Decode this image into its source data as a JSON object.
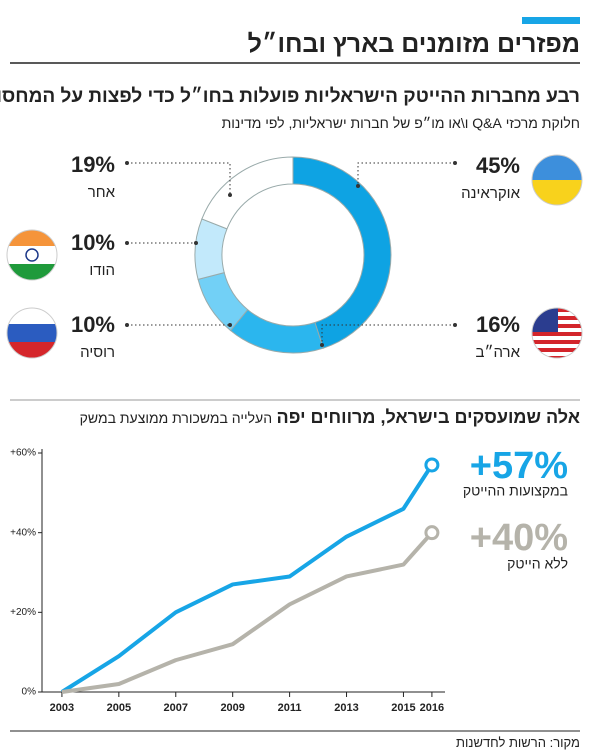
{
  "header": {
    "title": "מפזרים מזומנים בארץ ובחו״ל"
  },
  "chart_data": [
    {
      "type": "donut",
      "title": "רבע מחברות ההייטק הישראליות פועלות בחו״ל כדי לפצות על המחסור בעובדים",
      "subtitle": "חלוקת מרכזי Q&A ו\\או מו״פ של חברות ישראליות, לפי מדינות",
      "categories": [
        "אוקראינה",
        "ארה״ב",
        "רוסיה",
        "הודו",
        "אחר"
      ],
      "values": [
        45,
        16,
        10,
        10,
        19
      ],
      "value_labels": [
        "45%",
        "16%",
        "10%",
        "10%",
        "19%"
      ],
      "colors": [
        "#0ea3e3",
        "#2bb6ee",
        "#72d0f6",
        "#c2e9fb",
        "#ffffff"
      ]
    },
    {
      "type": "line",
      "title": "אלה שמועסקים בישראל, מרווחים יפה",
      "subtitle": "העלייה במשכורת ממוצעת במשק",
      "x": [
        2003,
        2005,
        2007,
        2009,
        2011,
        2013,
        2015,
        2016
      ],
      "xlim": [
        2002.3,
        2016.46
      ],
      "xticks": [
        2003,
        2005,
        2007,
        2009,
        2011,
        2013,
        2015,
        2016
      ],
      "ylim": [
        0,
        60
      ],
      "yticks": [
        {
          "value": 0,
          "label": "0%"
        },
        {
          "value": 20,
          "label": "+20%"
        },
        {
          "value": 40,
          "label": "+40%"
        },
        {
          "value": 60,
          "label": "+60%"
        }
      ],
      "series": [
        {
          "name": "במקצועות ההייטק",
          "color": "#17a5e6",
          "values": [
            0,
            9,
            20,
            27,
            29,
            39,
            46,
            57
          ],
          "value_labels": [
            null,
            null,
            null,
            null,
            null,
            null,
            null,
            "+57%"
          ]
        },
        {
          "name": "ללא הייטק",
          "color": "#b5b3aa",
          "values": [
            0,
            2,
            8,
            12,
            22,
            29,
            32,
            40
          ],
          "value_labels": [
            null,
            null,
            null,
            null,
            null,
            null,
            null,
            "+40%"
          ]
        }
      ]
    }
  ],
  "source": "מקור: הרשות לחדשנות"
}
